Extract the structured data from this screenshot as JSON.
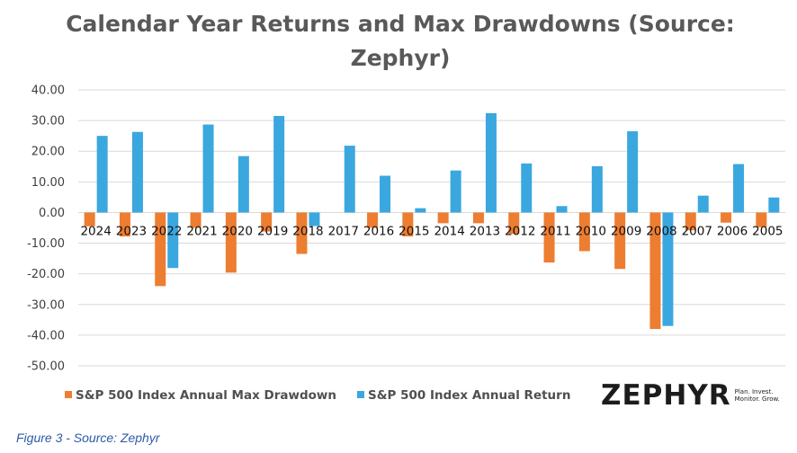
{
  "chart_data": {
    "type": "bar",
    "title": "Calendar Year Returns and Max Drawdowns (Source: Zephyr)",
    "xlabel": "",
    "ylabel": "",
    "ylim": [
      -50,
      40
    ],
    "yticks": [
      40,
      30,
      20,
      10,
      0,
      -10,
      -20,
      -30,
      -40,
      -50
    ],
    "ytick_labels": [
      "40.00",
      "30.00",
      "20.00",
      "10.00",
      "0.00",
      "-10.00",
      "-20.00",
      "-30.00",
      "-40.00",
      "-50.00"
    ],
    "grid": true,
    "legend_position": "bottom",
    "categories": [
      "2024",
      "2023",
      "2022",
      "2021",
      "2020",
      "2019",
      "2018",
      "2017",
      "2016",
      "2015",
      "2014",
      "2013",
      "2012",
      "2011",
      "2010",
      "2009",
      "2008",
      "2007",
      "2006",
      "2005"
    ],
    "series": [
      {
        "name": "S&P 500 Index Annual Max Drawdown",
        "color": "#ED7D31",
        "values": [
          -4.5,
          -7.8,
          -24.0,
          -5.0,
          -19.6,
          -6.2,
          -13.5,
          0.0,
          -5.0,
          -7.8,
          -3.5,
          -3.5,
          -7.0,
          -16.3,
          -12.6,
          -18.4,
          -38.0,
          -5.8,
          -3.3,
          -4.8
        ]
      },
      {
        "name": "S&P 500 Index Annual Return",
        "color": "#3BA7DF",
        "values": [
          25.0,
          26.3,
          -18.1,
          28.7,
          18.4,
          31.5,
          -4.4,
          21.8,
          12.0,
          1.4,
          13.7,
          32.4,
          16.0,
          2.1,
          15.1,
          26.5,
          -37.0,
          5.5,
          15.8,
          4.9
        ]
      }
    ]
  },
  "brand": {
    "name": "ZEPHYR",
    "tagline": "Plan. Invest. Monitor. Grow."
  },
  "caption": "Figure 3 - Source: Zephyr"
}
